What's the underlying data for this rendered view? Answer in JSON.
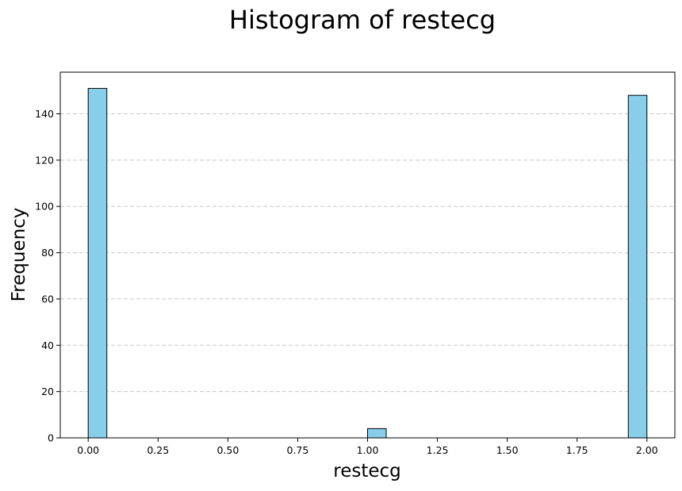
{
  "chart_data": {
    "type": "bar",
    "subtype": "histogram",
    "title": "Histogram of restecg",
    "xlabel": "restecg",
    "ylabel": "Frequency",
    "xlim": [
      -0.1,
      2.1
    ],
    "ylim": [
      0,
      158
    ],
    "xticks": [
      "0.00",
      "0.25",
      "0.50",
      "0.75",
      "1.00",
      "1.25",
      "1.50",
      "1.75",
      "2.00"
    ],
    "yticks": [
      "0",
      "20",
      "40",
      "60",
      "80",
      "100",
      "120",
      "140"
    ],
    "grid": {
      "axis": "y",
      "style": "dashed"
    },
    "bar_color": "#87CEEB",
    "edge_color": "#000000",
    "bins": [
      {
        "x0": 0.0,
        "x1": 0.0667,
        "count": 151
      },
      {
        "x0": 1.0,
        "x1": 1.0667,
        "count": 4
      },
      {
        "x0": 1.9333,
        "x1": 2.0,
        "count": 148
      }
    ]
  }
}
